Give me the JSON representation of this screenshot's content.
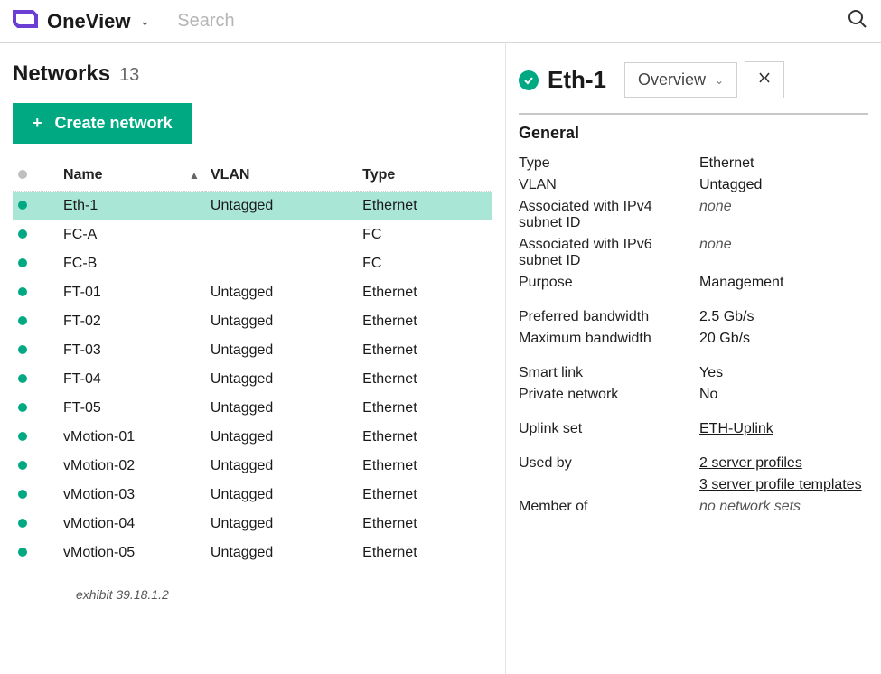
{
  "app": {
    "title": "OneView",
    "search_placeholder": "Search"
  },
  "colors": {
    "accent": "#01a982",
    "selected_row": "#a9e6d6",
    "border": "#d8d8d8",
    "muted": "#bfbfbf"
  },
  "networks": {
    "title": "Networks",
    "count": "13",
    "create_label": "Create network",
    "columns": {
      "status": "",
      "name": "Name",
      "vlan": "VLAN",
      "type": "Type"
    },
    "rows": [
      {
        "name": "Eth-1",
        "vlan": "Untagged",
        "type": "Ethernet",
        "selected": true
      },
      {
        "name": "FC-A",
        "vlan": "",
        "type": "FC"
      },
      {
        "name": "FC-B",
        "vlan": "",
        "type": "FC"
      },
      {
        "name": "FT-01",
        "vlan": "Untagged",
        "type": "Ethernet"
      },
      {
        "name": "FT-02",
        "vlan": "Untagged",
        "type": "Ethernet"
      },
      {
        "name": "FT-03",
        "vlan": "Untagged",
        "type": "Ethernet"
      },
      {
        "name": "FT-04",
        "vlan": "Untagged",
        "type": "Ethernet"
      },
      {
        "name": "FT-05",
        "vlan": "Untagged",
        "type": "Ethernet"
      },
      {
        "name": "vMotion-01",
        "vlan": "Untagged",
        "type": "Ethernet"
      },
      {
        "name": "vMotion-02",
        "vlan": "Untagged",
        "type": "Ethernet"
      },
      {
        "name": "vMotion-03",
        "vlan": "Untagged",
        "type": "Ethernet"
      },
      {
        "name": "vMotion-04",
        "vlan": "Untagged",
        "type": "Ethernet"
      },
      {
        "name": "vMotion-05",
        "vlan": "Untagged",
        "type": "Ethernet"
      }
    ],
    "exhibit": "exhibit 39.18.1.2"
  },
  "detail": {
    "title": "Eth-1",
    "view_label": "Overview",
    "section_general": "General",
    "fields": {
      "type": {
        "label": "Type",
        "value": "Ethernet"
      },
      "vlan": {
        "label": "VLAN",
        "value": "Untagged"
      },
      "ipv4": {
        "label": "Associated with IPv4 subnet ID",
        "value": "none",
        "italic": true
      },
      "ipv6": {
        "label": "Associated with IPv6 subnet ID",
        "value": "none",
        "italic": true
      },
      "purpose": {
        "label": "Purpose",
        "value": "Management"
      },
      "pref_bw": {
        "label": "Preferred bandwidth",
        "value": "2.5 Gb/s"
      },
      "max_bw": {
        "label": "Maximum bandwidth",
        "value": "20 Gb/s"
      },
      "smart_link": {
        "label": "Smart link",
        "value": "Yes"
      },
      "private": {
        "label": "Private network",
        "value": "No"
      },
      "uplink": {
        "label": "Uplink set",
        "value": "ETH-Uplink",
        "link": true
      },
      "used_by": {
        "label": "Used by",
        "value": "2 server profiles",
        "value2": "3 server profile templates",
        "link": true
      },
      "member_of": {
        "label": "Member of",
        "value": "no network sets",
        "italic": true
      }
    }
  }
}
